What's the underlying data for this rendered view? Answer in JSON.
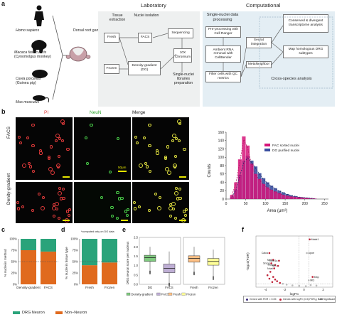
{
  "panel_a": {
    "letter": "a",
    "species": [
      {
        "name": "Homo sapiens"
      },
      {
        "name": "Macaca fascicularis",
        "common": "(Cynomolgus monkey)"
      },
      {
        "name": "Cavia porcellus",
        "common": "(Guinea pig)"
      },
      {
        "name": "Mus musculus"
      }
    ],
    "ganglion_label": "Dorsal root ganglion",
    "laboratory": {
      "heading": "Laboratory",
      "col_tissue": "Tissue extraction",
      "col_nuclei": "Nuclei isolation",
      "boxes": {
        "fresh": "Fresh",
        "frozen": "Frozen",
        "facs": "FACS",
        "dg": "Density-gradient (DG)",
        "sequencing": "Sequencing",
        "chromium": "10X Chromium",
        "libraries": "Single-nuclei libraries preparation"
      }
    },
    "computational": {
      "heading": "Computational",
      "boxes": {
        "single_nuclei": "Single-nuclei data processing",
        "preprocessing": "Pre-processing with Cell Ranger",
        "ambient": "Ambient RNA removal with CellBender",
        "filter": "Filter cells with QC metrics",
        "seurat": "Seurat integration",
        "metaneighbor": "MetaNeighbor",
        "conserved": "Conserved & divergent transcriptome analysis",
        "map": "Map homologous DRG subtypes",
        "cross_species": "Cross-species analysis"
      }
    }
  },
  "panel_b": {
    "letter": "b",
    "col_labels": {
      "pi": "PI",
      "neun": "NeuN",
      "merge": "Merge"
    },
    "row_labels": {
      "facs": "FACS",
      "dg": "Denity-gradient"
    },
    "scale_label": "50μm",
    "colors": {
      "pi": "#e23b3b",
      "neun": "#4ad04a",
      "merge": "#e0e040"
    }
  },
  "panel_c": {
    "letter": "c",
    "ylabel": "% nuclei in method",
    "yticks": [
      "0%",
      "25%",
      "50%",
      "75%",
      "100%"
    ],
    "xlabels": [
      "Density-gradient",
      "FACS"
    ]
  },
  "panel_d": {
    "letter": "d",
    "note": "*computed only on DG data",
    "ylabel": "% nuclei in tissue type",
    "yticks": [
      "0%",
      "25%",
      "50%",
      "75%",
      "100%"
    ],
    "xlabels": [
      "Fresh",
      "Frozen"
    ]
  },
  "panel_e": {
    "letter": "e",
    "ylabel": "DRG neuron score per nucleus",
    "yticks": [
      "0.0",
      "0.5",
      "1.0",
      "1.5",
      "2.0",
      "2.5"
    ],
    "xlabels": [
      "DG",
      "FACS",
      "Fresh",
      "Frozen"
    ],
    "legend": [
      "Density-gradient",
      "FACS",
      "Fresh",
      "Frozen"
    ]
  },
  "panel_f": {
    "letter": "f",
    "ylabel": "-log10(FDR)",
    "xlabel": "logFC",
    "xticks": [
      "-4",
      "-2",
      "0",
      "2"
    ],
    "genes": [
      "Malat1",
      "Calca",
      "Apoe",
      "Nefl",
      "Tubb1a",
      "Snrpn",
      "Ptma",
      "Mt1",
      "Nnat",
      "Mbp",
      "Mt3",
      "Mt2A",
      "Mt1M",
      "Bcs",
      "Mt1X",
      "Sst",
      "Calcb"
    ],
    "legend": [
      "Genes with FDR < 0.05",
      "Genes with logFC |0.5| FDR < 0.05",
      "Not Significant"
    ]
  },
  "legend_bottom": {
    "drg": "DRG Neuron",
    "non": "Non−Neuron",
    "colors": {
      "drg": "#2aa37a",
      "non": "#e06a1e"
    }
  },
  "chart_data": [
    {
      "id": "histogram",
      "type": "bar",
      "xlabel": "Area (μm²)",
      "ylabel": "Counts",
      "xlim": [
        0,
        260
      ],
      "ylim": [
        0,
        160
      ],
      "xticks": [
        0,
        50,
        100,
        150,
        200,
        250
      ],
      "yticks": [
        0,
        20,
        40,
        60,
        80,
        100,
        120,
        140,
        160
      ],
      "bin_width": 10,
      "bin_start": [
        10,
        20,
        30,
        40,
        50,
        60,
        70,
        80,
        90,
        100,
        110,
        120,
        130,
        140,
        150,
        160,
        170,
        180,
        190,
        200,
        210,
        220
      ],
      "series": [
        {
          "name": "FAC sorted nuclei",
          "color": "#d6157a",
          "values": [
            10,
            40,
            95,
            150,
            128,
            85,
            60,
            48,
            36,
            28,
            22,
            18,
            14,
            10,
            8,
            6,
            5,
            4,
            3,
            2,
            1,
            1
          ]
        },
        {
          "name": "DG purified nuclei",
          "color": "#3a4fa0",
          "values": [
            6,
            22,
            58,
            92,
            104,
            92,
            78,
            62,
            50,
            40,
            32,
            26,
            20,
            16,
            12,
            9,
            7,
            5,
            4,
            3,
            2,
            1
          ]
        }
      ]
    },
    {
      "id": "stacked_method",
      "type": "bar",
      "categories": [
        "Density-gradient",
        "FACS"
      ],
      "ylim": [
        0,
        100
      ],
      "series": [
        {
          "name": "Non−Neuron",
          "values": [
            75,
            72
          ]
        },
        {
          "name": "DRG Neuron",
          "values": [
            25,
            28
          ]
        }
      ]
    },
    {
      "id": "stacked_tissue",
      "type": "bar",
      "categories": [
        "Fresh",
        "Frozen"
      ],
      "ylim": [
        0,
        100
      ],
      "series": [
        {
          "name": "Non−Neuron",
          "values": [
            42,
            48
          ]
        },
        {
          "name": "DRG Neuron",
          "values": [
            58,
            52
          ]
        }
      ]
    },
    {
      "id": "boxplots",
      "type": "bar",
      "categories": [
        "DG",
        "FACS",
        "Fresh",
        "Frozen"
      ],
      "ylim": [
        0,
        2.5
      ],
      "boxes": [
        {
          "name": "DG",
          "q1": 1.22,
          "median": 1.42,
          "q3": 1.55,
          "whisker_low": 0.75,
          "whisker_high": 2.0,
          "color": "#7fc97f"
        },
        {
          "name": "FACS",
          "q1": 0.62,
          "median": 0.85,
          "q3": 1.08,
          "whisker_low": 0.1,
          "whisker_high": 1.75,
          "color": "#beaed4"
        },
        {
          "name": "Fresh",
          "q1": 1.18,
          "median": 1.38,
          "q3": 1.52,
          "whisker_low": 0.7,
          "whisker_high": 2.0,
          "color": "#fdc086"
        },
        {
          "name": "Frozen",
          "q1": 1.02,
          "median": 1.22,
          "q3": 1.38,
          "whisker_low": 0.45,
          "whisker_high": 1.85,
          "color": "#ffff99"
        }
      ]
    },
    {
      "id": "volcano",
      "type": "scatter",
      "xlim": [
        -5,
        3
      ],
      "ylim": [
        0,
        30
      ],
      "points": [
        {
          "x": 0.6,
          "y": 28,
          "label": "Malat1"
        },
        {
          "x": -3.6,
          "y": 20,
          "label": "Calca"
        },
        {
          "x": 0.3,
          "y": 20,
          "label": "Apoe"
        },
        {
          "x": -3.2,
          "y": 16,
          "label": "Nefl"
        },
        {
          "x": -2.6,
          "y": 15.5,
          "label": "Tubb1a"
        },
        {
          "x": -3.4,
          "y": 14,
          "label": "Snrpn"
        },
        {
          "x": -3.0,
          "y": 13,
          "label": "Ptma"
        },
        {
          "x": -2.7,
          "y": 12.5,
          "label": "Mt1"
        },
        {
          "x": -3.1,
          "y": 11,
          "label": "Nnat"
        },
        {
          "x": 0.9,
          "y": 6,
          "label": "Mbp"
        },
        {
          "x": 0.5,
          "y": 4,
          "label": "Mt3"
        },
        {
          "x": -3.5,
          "y": 9
        },
        {
          "x": -3.8,
          "y": 7
        },
        {
          "x": -3.2,
          "y": 6
        },
        {
          "x": -3.6,
          "y": 5
        },
        {
          "x": -3.0,
          "y": 4.5
        },
        {
          "x": -2.8,
          "y": 3.5
        },
        {
          "x": -3.3,
          "y": 3
        },
        {
          "x": -2.5,
          "y": 2.5
        },
        {
          "x": -2.2,
          "y": 2
        },
        {
          "x": -1.8,
          "y": 1.5
        },
        {
          "x": -1.2,
          "y": 1
        },
        {
          "x": -0.5,
          "y": 0.8
        },
        {
          "x": 0.2,
          "y": 0.6
        },
        {
          "x": 0.7,
          "y": 1.2
        },
        {
          "x": 1.3,
          "y": 0.9
        }
      ]
    }
  ]
}
